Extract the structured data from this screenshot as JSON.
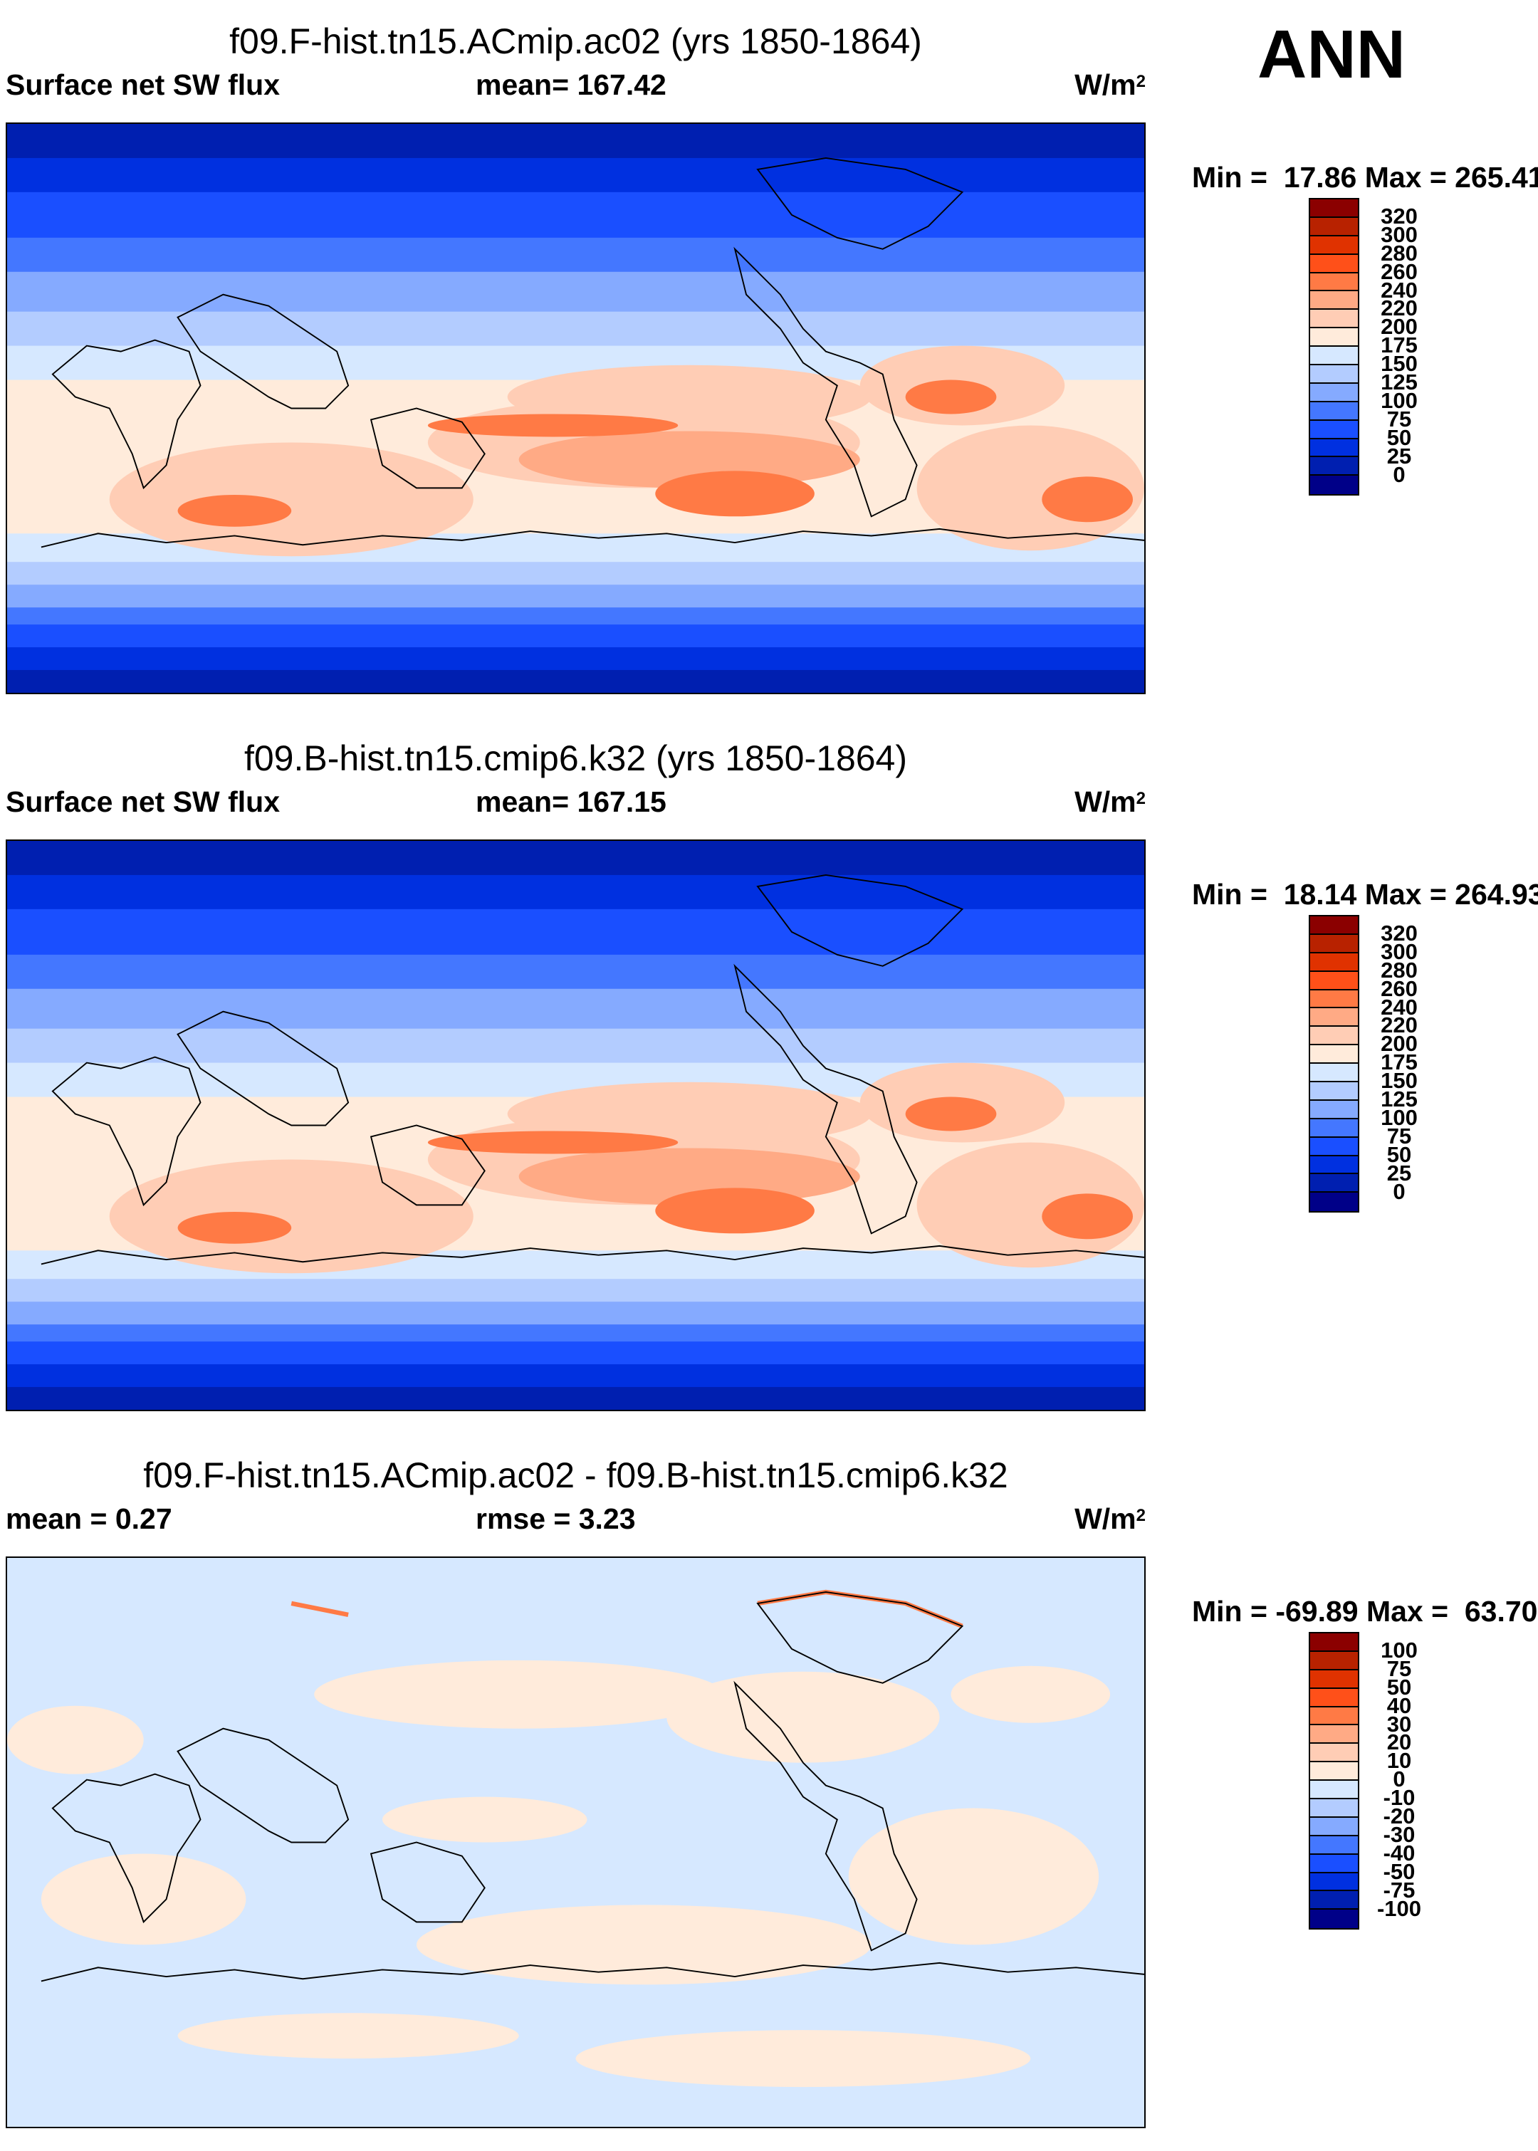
{
  "season": "ANN",
  "panels": [
    {
      "title": "f09.F-hist.tn15.ACmip.ac02 (yrs 1850-1864)",
      "left_label": "Surface net SW flux",
      "mid_label": "mean= 167.42",
      "units": "W/m",
      "units_sup": "2",
      "minmax": "Min =  17.86 Max = 265.41",
      "levels": [
        "320",
        "300",
        "280",
        "260",
        "240",
        "220",
        "200",
        "175",
        "150",
        "125",
        "100",
        "75",
        "50",
        "25",
        "0"
      ]
    },
    {
      "title": "f09.B-hist.tn15.cmip6.k32 (yrs 1850-1864)",
      "left_label": "Surface net SW flux",
      "mid_label": "mean= 167.15",
      "units": "W/m",
      "units_sup": "2",
      "minmax": "Min =  18.14 Max = 264.93",
      "levels": [
        "320",
        "300",
        "280",
        "260",
        "240",
        "220",
        "200",
        "175",
        "150",
        "125",
        "100",
        "75",
        "50",
        "25",
        "0"
      ]
    },
    {
      "title": "f09.F-hist.tn15.ACmip.ac02 - f09.B-hist.tn15.cmip6.k32",
      "left_label": "mean =   0.27",
      "mid_label": "rmse =   3.23",
      "units": "W/m",
      "units_sup": "2",
      "minmax": "Min = -69.89 Max =  63.70",
      "levels": [
        "100",
        "75",
        "50",
        "40",
        "30",
        "20",
        "10",
        "0",
        "-10",
        "-20",
        "-30",
        "-40",
        "-50",
        "-75",
        "-100"
      ]
    }
  ],
  "colormap": [
    "#8b0000",
    "#b82200",
    "#e03200",
    "#ff5019",
    "#ff7a45",
    "#ffaa85",
    "#ffcdb5",
    "#ffebdb",
    "#d6e8ff",
    "#b3ccff",
    "#85aaff",
    "#4477ff",
    "#1a4fff",
    "#0030e0",
    "#001fb0",
    "#000088"
  ]
}
